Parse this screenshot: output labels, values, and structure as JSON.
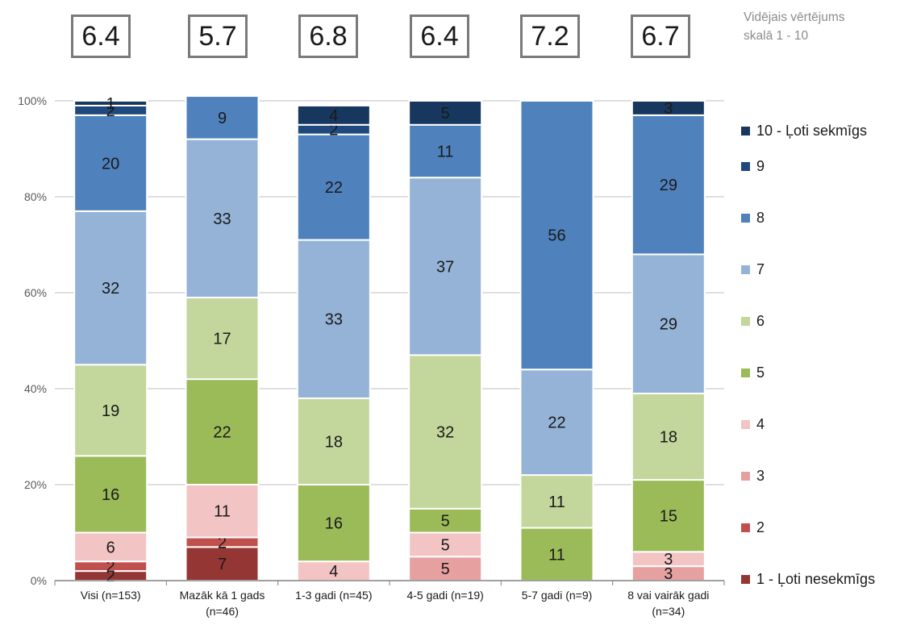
{
  "avg_caption": {
    "line1": "Vidējais vērtējums",
    "line2": "skalā 1 - 10"
  },
  "averages": [
    "6.4",
    "5.7",
    "6.8",
    "6.4",
    "7.2",
    "6.7"
  ],
  "legend": [
    {
      "label": "10 - Ļoti sekmīgs",
      "color": "#17375e"
    },
    {
      "label": "9",
      "color": "#1f497d"
    },
    {
      "label": "8",
      "color": "#4f81bd"
    },
    {
      "label": "7",
      "color": "#95b3d7"
    },
    {
      "label": "6",
      "color": "#c3d69b"
    },
    {
      "label": "5",
      "color": "#9bbb59"
    },
    {
      "label": "4",
      "color": "#f2c4c4"
    },
    {
      "label": "3",
      "color": "#e6a0a0"
    },
    {
      "label": "2",
      "color": "#c0504d"
    },
    {
      "label": "1 - Ļoti nesekmīgs",
      "color": "#943634"
    }
  ],
  "chart_data": {
    "type": "bar",
    "stacked": true,
    "categories": [
      [
        "Visi (n=153)"
      ],
      [
        "Mazāk kā 1 gads",
        "(n=46)"
      ],
      [
        "1-3 gadi (n=45)"
      ],
      [
        "4-5 gadi (n=19)"
      ],
      [
        "5-7 gadi (n=9)"
      ],
      [
        "8 vai vairāk gadi",
        "(n=34)"
      ]
    ],
    "yticks": [
      "0%",
      "20%",
      "40%",
      "60%",
      "80%",
      "100%"
    ],
    "ylim": [
      0,
      100
    ],
    "grid": true,
    "legend_position": "right",
    "series": [
      {
        "name": "1 - Ļoti nesekmīgs",
        "color": "#943634",
        "values": [
          2,
          7,
          0,
          0,
          0,
          0
        ]
      },
      {
        "name": "2",
        "color": "#c0504d",
        "values": [
          2,
          2,
          0,
          0,
          0,
          0
        ]
      },
      {
        "name": "3",
        "color": "#e6a0a0",
        "values": [
          0,
          0,
          0,
          5,
          0,
          3
        ]
      },
      {
        "name": "4",
        "color": "#f2c4c4",
        "values": [
          6,
          11,
          4,
          5,
          0,
          3
        ]
      },
      {
        "name": "5",
        "color": "#9bbb59",
        "values": [
          16,
          22,
          16,
          5,
          11,
          15
        ]
      },
      {
        "name": "6",
        "color": "#c3d69b",
        "values": [
          19,
          17,
          18,
          32,
          11,
          18
        ]
      },
      {
        "name": "7",
        "color": "#95b3d7",
        "values": [
          32,
          33,
          33,
          37,
          22,
          29
        ]
      },
      {
        "name": "8",
        "color": "#4f81bd",
        "values": [
          20,
          9,
          22,
          11,
          56,
          29
        ]
      },
      {
        "name": "9",
        "color": "#1f497d",
        "values": [
          2,
          0,
          2,
          0,
          0,
          0
        ]
      },
      {
        "name": "10 - Ļoti sekmīgs",
        "color": "#17375e",
        "values": [
          1,
          0,
          4,
          5,
          0,
          3
        ]
      }
    ]
  }
}
